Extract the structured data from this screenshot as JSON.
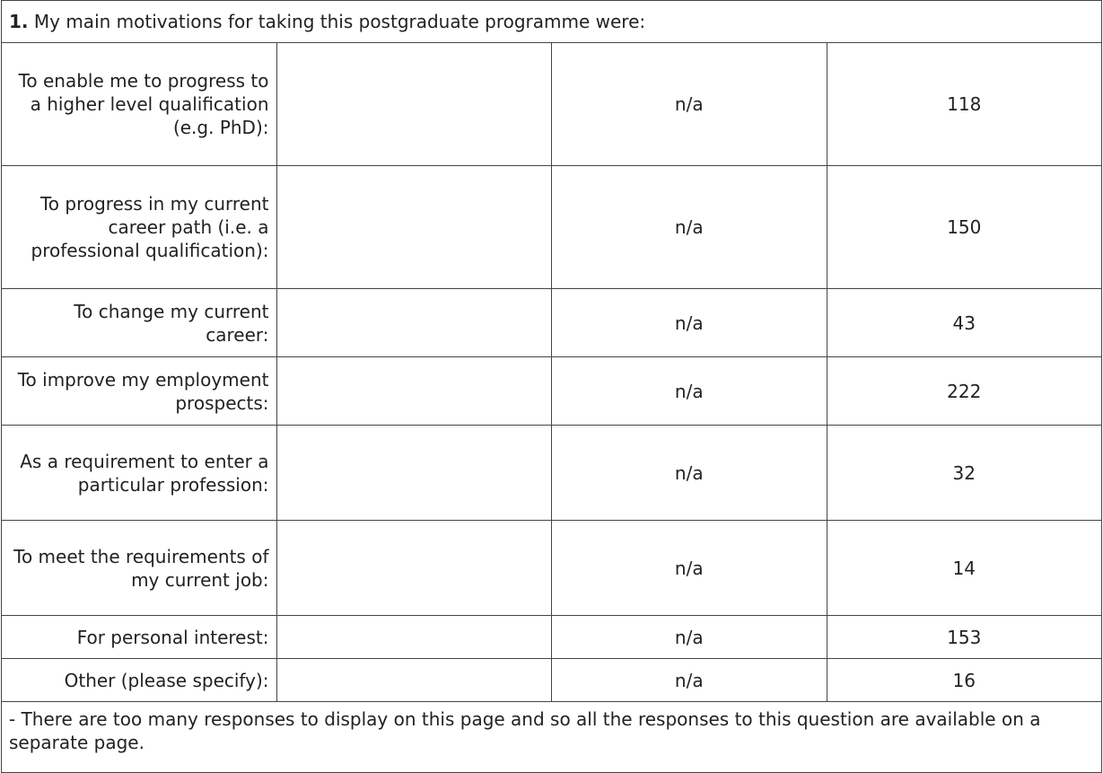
{
  "chart_data": {
    "type": "bar",
    "orientation": "horizontal",
    "color": "#f7b86a",
    "number": "1.",
    "title": "My main motivations for taking this postgraduate programme were:",
    "categories": [
      "To enable me to progress to a higher level qualification (e.g. PhD):",
      "To progress in my current career path (i.e. a professional qualification):",
      "To change my current career:",
      "To improve my employment prospects:",
      "As a requirement to enter a particular profession:",
      "To meet the requirements of my current job:",
      "For personal interest:",
      "Other (please specify):"
    ],
    "values": [
      118,
      150,
      43,
      222,
      32,
      14,
      153,
      16
    ],
    "percent_labels": [
      "n/a",
      "n/a",
      "n/a",
      "n/a",
      "n/a",
      "n/a",
      "n/a",
      "n/a"
    ],
    "note": "- There are too many responses to display on this page and so all the responses to this question are available on a separate page."
  }
}
